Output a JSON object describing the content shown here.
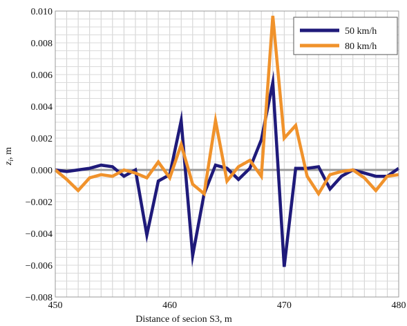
{
  "chart_data": {
    "type": "line",
    "title": "",
    "xlabel": "Distance  of secion S3, m",
    "ylabel_main": "z",
    "ylabel_sub": "i",
    "ylabel_rest": ", m",
    "xlim": [
      450,
      480
    ],
    "ylim": [
      -0.008,
      0.01
    ],
    "x_ticks": [
      450,
      460,
      470,
      480
    ],
    "y_ticks": [
      0.01,
      0.008,
      0.006,
      0.004,
      0.002,
      0.0,
      -0.002,
      -0.004,
      -0.006,
      -0.008
    ],
    "y_tick_labels": [
      "0.010",
      "0.008",
      "0.006",
      "0.004",
      "0.002",
      "0.000",
      "−0.002",
      "−0.004",
      "−0.006",
      "−0.008"
    ],
    "grid": true,
    "legend_position": "top-right",
    "series": [
      {
        "name": "50 km/h",
        "color": "#1f1a7a",
        "x": [
          450,
          451,
          452,
          453,
          454,
          455,
          456,
          457,
          458,
          459,
          460,
          461,
          462,
          463,
          464,
          465,
          466,
          467,
          468,
          469,
          470,
          471,
          472,
          473,
          474,
          475,
          476,
          477,
          478,
          479,
          480
        ],
        "values": [
          0.0,
          -0.0001,
          0.0,
          0.0001,
          0.0003,
          0.0002,
          -0.0004,
          0.0,
          -0.0041,
          -0.0007,
          -0.0003,
          0.0031,
          -0.0054,
          -0.0015,
          0.0003,
          0.0001,
          -0.0006,
          0.0001,
          0.0019,
          0.0055,
          -0.0061,
          0.0001,
          0.0001,
          0.0002,
          -0.0012,
          -0.0004,
          0.0,
          -0.0002,
          -0.0004,
          -0.0004,
          0.0001
        ]
      },
      {
        "name": "80 km/h",
        "color": "#f0922b",
        "x": [
          450,
          451,
          452,
          453,
          454,
          455,
          456,
          457,
          458,
          459,
          460,
          461,
          462,
          463,
          464,
          465,
          466,
          467,
          468,
          469,
          470,
          471,
          472,
          473,
          474,
          475,
          476,
          477,
          478,
          479,
          480
        ],
        "values": [
          0.0,
          -0.0006,
          -0.0013,
          -0.0005,
          -0.0003,
          -0.0004,
          0.0,
          -0.0002,
          -0.0005,
          0.0005,
          -0.0005,
          0.0016,
          -0.0009,
          -0.0015,
          0.0031,
          -0.0007,
          0.0002,
          0.0006,
          -0.0004,
          0.0097,
          0.002,
          0.0028,
          -0.0004,
          -0.0015,
          -0.0003,
          -0.0001,
          0.0,
          -0.0005,
          -0.0013,
          -0.0004,
          -0.0003
        ]
      }
    ]
  }
}
